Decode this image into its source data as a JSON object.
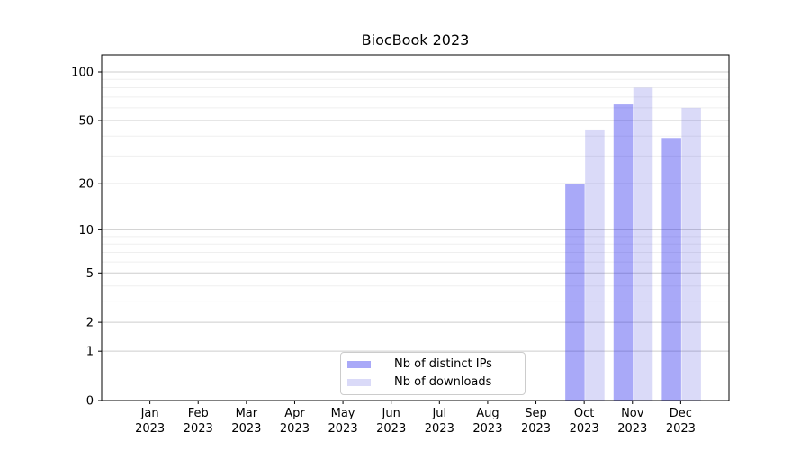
{
  "chart_data": {
    "type": "bar",
    "title": "BiocBook 2023",
    "x_tick_year": "2023",
    "months": [
      "Jan",
      "Feb",
      "Mar",
      "Apr",
      "May",
      "Jun",
      "Jul",
      "Aug",
      "Sep",
      "Oct",
      "Nov",
      "Dec"
    ],
    "y_scale": "log10(1+x)",
    "ylim": [
      0,
      127
    ],
    "y_major_ticks": [
      100,
      50,
      20,
      10,
      5,
      2,
      1,
      0
    ],
    "y_minor_gridlines": [
      3,
      4,
      6,
      7,
      8,
      9,
      30,
      40,
      60,
      70,
      80,
      90
    ],
    "grid": true,
    "legend_position": "lower center",
    "colors": {
      "major_grid": "#cecece",
      "minor_grid": "#efefef",
      "spine": "#000000",
      "text": "#000000",
      "legend_border": "#cccccc"
    },
    "series": [
      {
        "name": "Nb of distinct IPs",
        "color": "rgba(28,28,236,0.38)",
        "color_hex": "#a9a9f8",
        "values": [
          0,
          0,
          0,
          0,
          0,
          0,
          0,
          0,
          0,
          20,
          63,
          39
        ]
      },
      {
        "name": "Nb of downloads",
        "color": "rgba(36,36,214,0.17)",
        "color_hex": "#dadaf8",
        "values": [
          0,
          0,
          0,
          0,
          0,
          0,
          0,
          0,
          0,
          44,
          80,
          60
        ]
      }
    ]
  }
}
